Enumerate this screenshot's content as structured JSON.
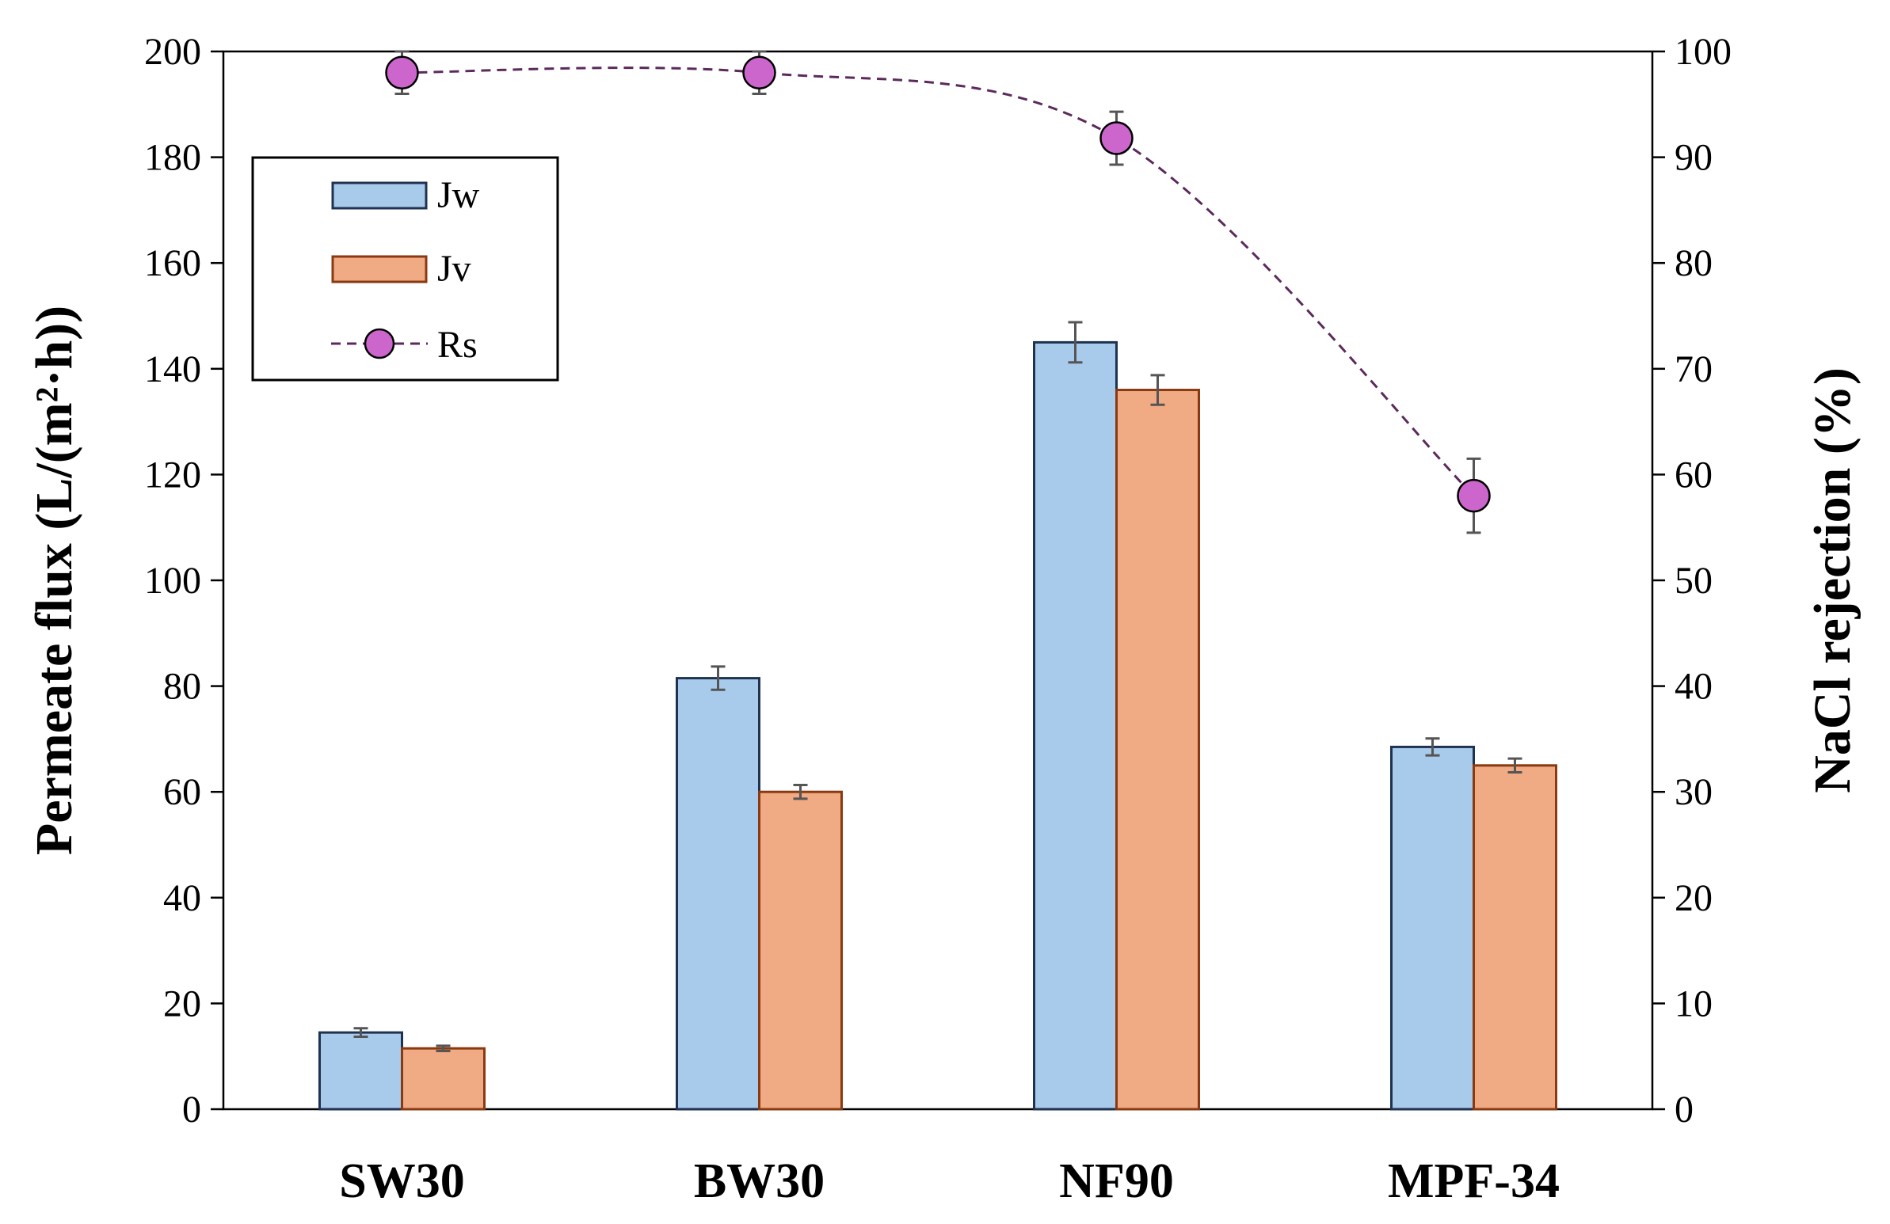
{
  "chart_data": {
    "type": "bar",
    "categories": [
      "SW30",
      "BW30",
      "NF90",
      "MPF-34"
    ],
    "series": [
      {
        "name": "Jw",
        "kind": "bar",
        "axis": "left",
        "values": [
          14.5,
          81.5,
          145,
          68.5
        ],
        "errors": [
          0.8,
          2.2,
          3.8,
          1.6
        ],
        "fill": "#a8cbec",
        "stroke": "#1f3350"
      },
      {
        "name": "Jv",
        "kind": "bar",
        "axis": "left",
        "values": [
          11.5,
          60,
          136,
          65
        ],
        "errors": [
          0.5,
          1.3,
          2.8,
          1.3
        ],
        "fill": "#f0aa84",
        "stroke": "#8a3a10"
      },
      {
        "name": "Rs",
        "kind": "line-marker",
        "axis": "right",
        "values": [
          98,
          98,
          91.8,
          58
        ],
        "errors": [
          2.0,
          2.0,
          2.5,
          3.5
        ],
        "marker_fill": "#cc66cc",
        "line_color": "#5b2a5b"
      }
    ],
    "left_axis": {
      "label": "Permeate flux (L/(m²·h))",
      "range": [
        0,
        200
      ],
      "ticks": [
        "0",
        "20",
        "40",
        "60",
        "80",
        "100",
        "120",
        "140",
        "160",
        "180",
        "200"
      ]
    },
    "right_axis": {
      "label": "NaCl rejection (%)",
      "range": [
        0,
        100
      ],
      "ticks": [
        "0",
        "10",
        "20",
        "30",
        "40",
        "50",
        "60",
        "70",
        "80",
        "90",
        "100"
      ]
    },
    "grid": false,
    "legend_position": "top-left"
  }
}
